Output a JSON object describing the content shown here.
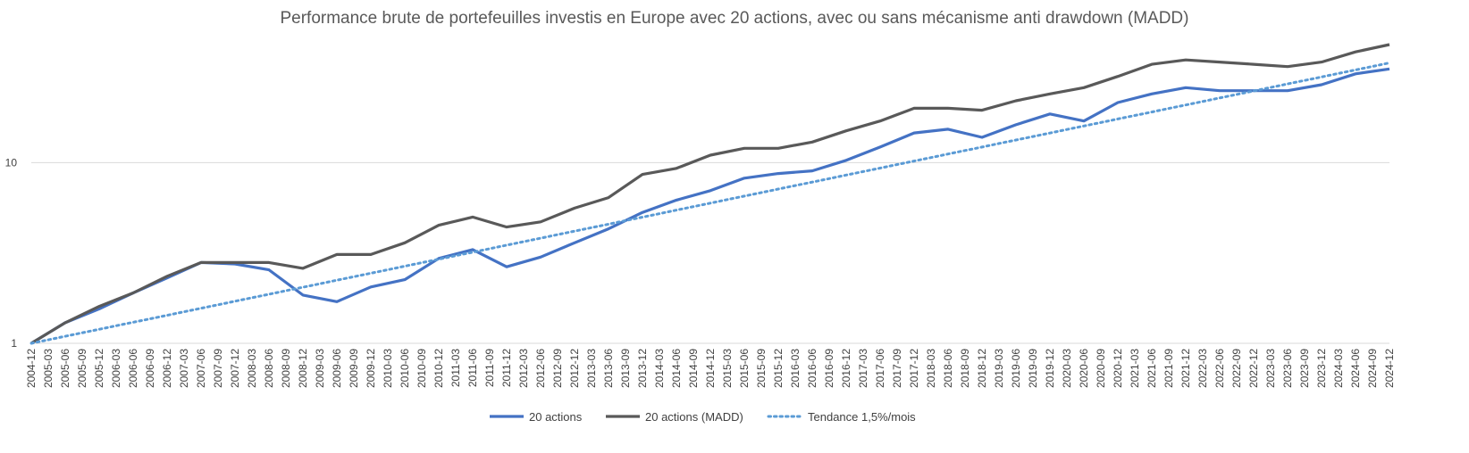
{
  "chart_data": {
    "type": "line",
    "title": "Performance brute de portefeuilles investis en Europe avec 20 actions, avec ou sans mécanisme anti drawdown (MADD)",
    "xlabel": "",
    "ylabel": "",
    "y_scale": "log",
    "ylim": [
      1,
      45
    ],
    "y_ticks": [
      1,
      10
    ],
    "y_tick_labels": [
      "1",
      "10"
    ],
    "grid": "horizontal",
    "legend_position": "bottom",
    "x_tick_labels": [
      "2004-12",
      "2005-03",
      "2005-06",
      "2005-09",
      "2005-12",
      "2006-03",
      "2006-06",
      "2006-09",
      "2006-12",
      "2007-03",
      "2007-06",
      "2007-09",
      "2007-12",
      "2008-03",
      "2008-06",
      "2008-09",
      "2008-12",
      "2009-03",
      "2009-06",
      "2009-09",
      "2009-12",
      "2010-03",
      "2010-06",
      "2010-09",
      "2010-12",
      "2011-03",
      "2011-06",
      "2011-09",
      "2011-12",
      "2012-03",
      "2012-06",
      "2012-09",
      "2012-12",
      "2013-03",
      "2013-06",
      "2013-09",
      "2013-12",
      "2014-03",
      "2014-06",
      "2014-09",
      "2014-12",
      "2015-03",
      "2015-06",
      "2015-09",
      "2015-12",
      "2016-03",
      "2016-06",
      "2016-09",
      "2016-12",
      "2017-03",
      "2017-06",
      "2017-09",
      "2017-12",
      "2018-03",
      "2018-06",
      "2018-09",
      "2018-12",
      "2019-03",
      "2019-06",
      "2019-09",
      "2019-12",
      "2020-03",
      "2020-06",
      "2020-09",
      "2020-12",
      "2021-03",
      "2021-06",
      "2021-09",
      "2021-12",
      "2022-03",
      "2022-06",
      "2022-09",
      "2022-12",
      "2023-03",
      "2023-06",
      "2023-09",
      "2023-12",
      "2024-03",
      "2024-06",
      "2024-09",
      "2024-12"
    ],
    "x": [
      "2004-12",
      "2005-06",
      "2005-12",
      "2006-06",
      "2006-12",
      "2007-06",
      "2007-12",
      "2008-06",
      "2008-12",
      "2009-06",
      "2009-12",
      "2010-06",
      "2010-12",
      "2011-06",
      "2011-12",
      "2012-06",
      "2012-12",
      "2013-06",
      "2013-12",
      "2014-06",
      "2014-12",
      "2015-06",
      "2015-12",
      "2016-06",
      "2016-12",
      "2017-06",
      "2017-12",
      "2018-06",
      "2018-12",
      "2019-06",
      "2019-12",
      "2020-06",
      "2020-12",
      "2021-06",
      "2021-12",
      "2022-06",
      "2022-12",
      "2023-06",
      "2023-12",
      "2024-06",
      "2024-12"
    ],
    "series": [
      {
        "name": "20 actions",
        "color": "#4472c4",
        "style": "solid",
        "values": [
          1.0,
          1.3,
          1.55,
          1.9,
          2.3,
          2.8,
          2.75,
          2.55,
          1.85,
          1.7,
          2.05,
          2.25,
          2.95,
          3.3,
          2.65,
          3.0,
          3.6,
          4.3,
          5.3,
          6.2,
          7.0,
          8.2,
          8.7,
          9.0,
          10.3,
          12.2,
          14.6,
          15.3,
          13.8,
          16.2,
          18.6,
          17.0,
          21.5,
          24.0,
          26.0,
          25.0,
          25.0,
          25.0,
          27.0,
          31.0,
          33.0
        ]
      },
      {
        "name": "20 actions (MADD)",
        "color": "#595959",
        "style": "solid",
        "values": [
          1.0,
          1.3,
          1.6,
          1.9,
          2.35,
          2.8,
          2.8,
          2.8,
          2.6,
          3.1,
          3.1,
          3.6,
          4.5,
          5.0,
          4.4,
          4.7,
          5.6,
          6.4,
          8.6,
          9.3,
          11.0,
          12.0,
          12.0,
          13.0,
          15.0,
          17.0,
          20.0,
          20.0,
          19.5,
          22.0,
          24.0,
          26.0,
          30.0,
          35.0,
          37.0,
          36.0,
          35.0,
          34.0,
          36.0,
          41.0,
          45.0
        ]
      },
      {
        "name": "Tendance 1,5%/mois",
        "color": "#5b9bd5",
        "style": "dotted",
        "start_value": 1.0,
        "monthly_growth": 0.015
      }
    ]
  }
}
